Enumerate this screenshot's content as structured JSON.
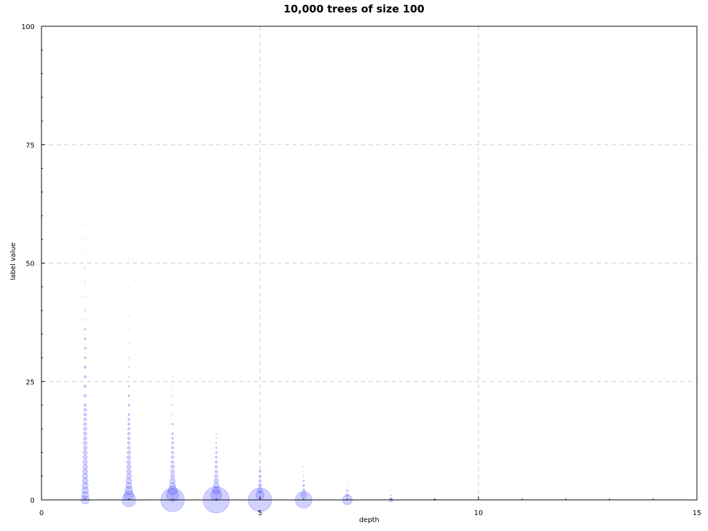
{
  "chart_data": {
    "type": "scatter",
    "title": "10,000 trees of size 100",
    "xlabel": "depth",
    "ylabel": "label value",
    "xlim": [
      0,
      15
    ],
    "ylim": [
      0,
      100
    ],
    "x_ticks": [
      "0",
      "5",
      "10",
      "15"
    ],
    "y_ticks": [
      "0",
      "25",
      "50",
      "75",
      "100"
    ],
    "grid": true,
    "colors": {
      "bubble": "#4d4dff",
      "grid": "#c8c8c8"
    },
    "series": [
      {
        "points": [
          {
            "x": 1,
            "y": 0,
            "size": 6
          },
          {
            "x": 1,
            "y": 1,
            "size": 5
          },
          {
            "x": 1,
            "y": 2,
            "size": 4.6
          },
          {
            "x": 1,
            "y": 3,
            "size": 4.3
          },
          {
            "x": 1,
            "y": 4,
            "size": 4
          },
          {
            "x": 1,
            "y": 5,
            "size": 3.8
          },
          {
            "x": 1,
            "y": 6,
            "size": 3.6
          },
          {
            "x": 1,
            "y": 7,
            "size": 3.4
          },
          {
            "x": 1,
            "y": 8,
            "size": 3.2
          },
          {
            "x": 1,
            "y": 9,
            "size": 3
          },
          {
            "x": 1,
            "y": 10,
            "size": 2.9
          },
          {
            "x": 1,
            "y": 11,
            "size": 2.8
          },
          {
            "x": 1,
            "y": 12,
            "size": 2.7
          },
          {
            "x": 1,
            "y": 13,
            "size": 2.6
          },
          {
            "x": 1,
            "y": 14,
            "size": 2.5
          },
          {
            "x": 1,
            "y": 15,
            "size": 2.4
          },
          {
            "x": 1,
            "y": 16,
            "size": 2.3
          },
          {
            "x": 1,
            "y": 17,
            "size": 2.2
          },
          {
            "x": 1,
            "y": 18,
            "size": 2.1
          },
          {
            "x": 1,
            "y": 19,
            "size": 2
          },
          {
            "x": 1,
            "y": 20,
            "size": 2
          },
          {
            "x": 1,
            "y": 22,
            "size": 1.8
          },
          {
            "x": 1,
            "y": 24,
            "size": 1.7
          },
          {
            "x": 1,
            "y": 26,
            "size": 1.6
          },
          {
            "x": 1,
            "y": 28,
            "size": 1.5
          },
          {
            "x": 1,
            "y": 30,
            "size": 1.4
          },
          {
            "x": 1,
            "y": 32,
            "size": 1.3
          },
          {
            "x": 1,
            "y": 34,
            "size": 1.2
          },
          {
            "x": 1,
            "y": 36,
            "size": 1.1
          },
          {
            "x": 1,
            "y": 38,
            "size": 1
          },
          {
            "x": 1,
            "y": 40,
            "size": 1
          },
          {
            "x": 1,
            "y": 43,
            "size": 0.9
          },
          {
            "x": 1,
            "y": 46,
            "size": 0.8
          },
          {
            "x": 1,
            "y": 49,
            "size": 0.8
          },
          {
            "x": 1,
            "y": 52,
            "size": 0.7
          },
          {
            "x": 1,
            "y": 55,
            "size": 0.7
          },
          {
            "x": 1,
            "y": 58,
            "size": 0.6
          },
          {
            "x": 1,
            "y": 61,
            "size": 0.6
          },
          {
            "x": 1,
            "y": 64,
            "size": 0.5
          },
          {
            "x": 1,
            "y": 67,
            "size": 0.5
          },
          {
            "x": 1,
            "y": 70,
            "size": 0.5
          },
          {
            "x": 1,
            "y": 73,
            "size": 0.4
          },
          {
            "x": 2,
            "y": 0,
            "size": 10
          },
          {
            "x": 2,
            "y": 1,
            "size": 7
          },
          {
            "x": 2,
            "y": 2,
            "size": 5.5
          },
          {
            "x": 2,
            "y": 3,
            "size": 4.5
          },
          {
            "x": 2,
            "y": 4,
            "size": 4
          },
          {
            "x": 2,
            "y": 5,
            "size": 3.6
          },
          {
            "x": 2,
            "y": 6,
            "size": 3.3
          },
          {
            "x": 2,
            "y": 7,
            "size": 3
          },
          {
            "x": 2,
            "y": 8,
            "size": 2.8
          },
          {
            "x": 2,
            "y": 9,
            "size": 2.6
          },
          {
            "x": 2,
            "y": 10,
            "size": 2.4
          },
          {
            "x": 2,
            "y": 11,
            "size": 2.2
          },
          {
            "x": 2,
            "y": 12,
            "size": 2
          },
          {
            "x": 2,
            "y": 13,
            "size": 1.9
          },
          {
            "x": 2,
            "y": 14,
            "size": 1.8
          },
          {
            "x": 2,
            "y": 15,
            "size": 1.7
          },
          {
            "x": 2,
            "y": 16,
            "size": 1.6
          },
          {
            "x": 2,
            "y": 17,
            "size": 1.5
          },
          {
            "x": 2,
            "y": 18,
            "size": 1.4
          },
          {
            "x": 2,
            "y": 20,
            "size": 1.3
          },
          {
            "x": 2,
            "y": 22,
            "size": 1.2
          },
          {
            "x": 2,
            "y": 24,
            "size": 1.1
          },
          {
            "x": 2,
            "y": 26,
            "size": 1
          },
          {
            "x": 2,
            "y": 28,
            "size": 0.9
          },
          {
            "x": 2,
            "y": 30,
            "size": 0.8
          },
          {
            "x": 2,
            "y": 33,
            "size": 0.7
          },
          {
            "x": 2,
            "y": 36,
            "size": 0.6
          },
          {
            "x": 2,
            "y": 39,
            "size": 0.6
          },
          {
            "x": 2,
            "y": 42,
            "size": 0.5
          },
          {
            "x": 2,
            "y": 45,
            "size": 0.5
          },
          {
            "x": 2,
            "y": 48,
            "size": 0.4
          },
          {
            "x": 2,
            "y": 51,
            "size": 0.4
          },
          {
            "x": 3,
            "y": 0,
            "size": 17
          },
          {
            "x": 3,
            "y": 1,
            "size": 9
          },
          {
            "x": 3,
            "y": 2,
            "size": 6.5
          },
          {
            "x": 3,
            "y": 3,
            "size": 4.5
          },
          {
            "x": 3,
            "y": 4,
            "size": 3.8
          },
          {
            "x": 3,
            "y": 5,
            "size": 3.2
          },
          {
            "x": 3,
            "y": 6,
            "size": 2.8
          },
          {
            "x": 3,
            "y": 7,
            "size": 2.5
          },
          {
            "x": 3,
            "y": 8,
            "size": 2.2
          },
          {
            "x": 3,
            "y": 9,
            "size": 2
          },
          {
            "x": 3,
            "y": 10,
            "size": 1.8
          },
          {
            "x": 3,
            "y": 11,
            "size": 1.6
          },
          {
            "x": 3,
            "y": 12,
            "size": 1.5
          },
          {
            "x": 3,
            "y": 13,
            "size": 1.4
          },
          {
            "x": 3,
            "y": 14,
            "size": 1.3
          },
          {
            "x": 3,
            "y": 16,
            "size": 1.2
          },
          {
            "x": 3,
            "y": 18,
            "size": 1
          },
          {
            "x": 3,
            "y": 20,
            "size": 0.9
          },
          {
            "x": 3,
            "y": 22,
            "size": 0.8
          },
          {
            "x": 3,
            "y": 24,
            "size": 0.7
          },
          {
            "x": 3,
            "y": 26,
            "size": 0.6
          },
          {
            "x": 3,
            "y": 28,
            "size": 0.5
          },
          {
            "x": 3,
            "y": 30,
            "size": 0.4
          },
          {
            "x": 4,
            "y": 0,
            "size": 19
          },
          {
            "x": 4,
            "y": 1,
            "size": 8
          },
          {
            "x": 4,
            "y": 2,
            "size": 5.5
          },
          {
            "x": 4,
            "y": 3,
            "size": 4
          },
          {
            "x": 4,
            "y": 4,
            "size": 3.2
          },
          {
            "x": 4,
            "y": 5,
            "size": 2.6
          },
          {
            "x": 4,
            "y": 6,
            "size": 2.2
          },
          {
            "x": 4,
            "y": 7,
            "size": 1.9
          },
          {
            "x": 4,
            "y": 8,
            "size": 1.6
          },
          {
            "x": 4,
            "y": 9,
            "size": 1.4
          },
          {
            "x": 4,
            "y": 10,
            "size": 1.2
          },
          {
            "x": 4,
            "y": 11,
            "size": 1.1
          },
          {
            "x": 4,
            "y": 12,
            "size": 1
          },
          {
            "x": 4,
            "y": 13,
            "size": 0.9
          },
          {
            "x": 4,
            "y": 14,
            "size": 0.8
          },
          {
            "x": 4,
            "y": 16,
            "size": 0.6
          },
          {
            "x": 4,
            "y": 18,
            "size": 0.5
          },
          {
            "x": 5,
            "y": 0,
            "size": 17
          },
          {
            "x": 5,
            "y": 1,
            "size": 6
          },
          {
            "x": 5,
            "y": 2,
            "size": 3.5
          },
          {
            "x": 5,
            "y": 3,
            "size": 2.5
          },
          {
            "x": 5,
            "y": 4,
            "size": 2
          },
          {
            "x": 5,
            "y": 5,
            "size": 1.6
          },
          {
            "x": 5,
            "y": 6,
            "size": 1.3
          },
          {
            "x": 5,
            "y": 7,
            "size": 1
          },
          {
            "x": 5,
            "y": 8,
            "size": 0.8
          },
          {
            "x": 5,
            "y": 10,
            "size": 0.6
          },
          {
            "x": 5,
            "y": 12,
            "size": 0.5
          },
          {
            "x": 6,
            "y": 0,
            "size": 12
          },
          {
            "x": 6,
            "y": 1,
            "size": 4
          },
          {
            "x": 6,
            "y": 2,
            "size": 2.2
          },
          {
            "x": 6,
            "y": 3,
            "size": 1.5
          },
          {
            "x": 6,
            "y": 4,
            "size": 1.1
          },
          {
            "x": 6,
            "y": 5,
            "size": 0.9
          },
          {
            "x": 6,
            "y": 6,
            "size": 0.7
          },
          {
            "x": 6,
            "y": 7,
            "size": 0.5
          },
          {
            "x": 7,
            "y": 0,
            "size": 7
          },
          {
            "x": 7,
            "y": 1,
            "size": 2.2
          },
          {
            "x": 7,
            "y": 2,
            "size": 1.2
          },
          {
            "x": 7,
            "y": 3,
            "size": 0.7
          },
          {
            "x": 8,
            "y": 0,
            "size": 3
          },
          {
            "x": 8,
            "y": 1,
            "size": 1
          },
          {
            "x": 8,
            "y": 2,
            "size": 0.5
          },
          {
            "x": 9,
            "y": 0,
            "size": 1.2
          },
          {
            "x": 9,
            "y": 1,
            "size": 0.4
          }
        ]
      }
    ]
  }
}
